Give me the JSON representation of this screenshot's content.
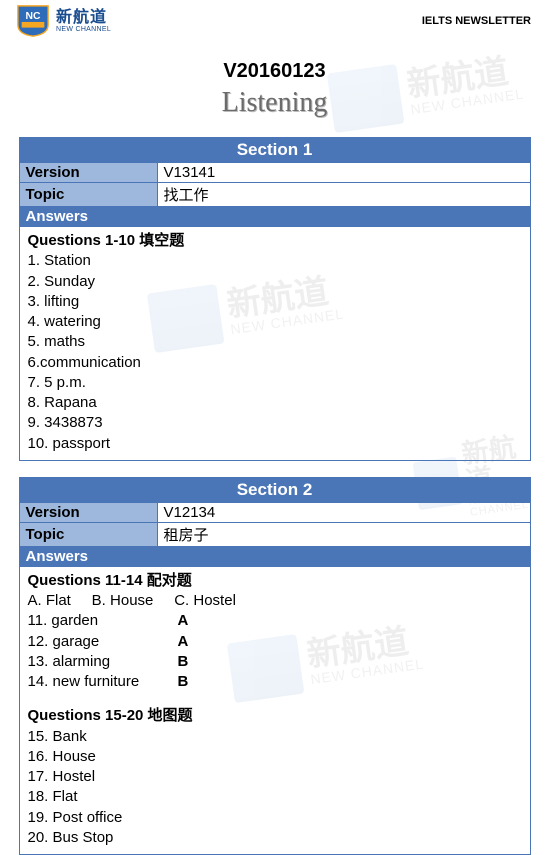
{
  "header": {
    "logo_cn": "新航道",
    "logo_en": "NEW CHANNEL",
    "newsletter": "IELTS NEWSLETTER"
  },
  "title": {
    "code": "V20160123",
    "heading": "Listening"
  },
  "watermark": {
    "cn": "新航道",
    "en": "NEW CHANNEL"
  },
  "section1": {
    "header": "Section 1",
    "version_label": "Version",
    "version_value": "V13141",
    "topic_label": "Topic",
    "topic_value": "找工作",
    "answers_label": "Answers",
    "q_heading": "Questions 1-10  填空题",
    "items": [
      "1. Station",
      "2. Sunday",
      "3. lifting",
      "4. watering",
      "5. maths",
      "6.communication",
      "7. 5 p.m.",
      "8. Rapana",
      "9. 3438873",
      "10. passport"
    ]
  },
  "section2": {
    "header": "Section 2",
    "version_label": "Version",
    "version_value": "V12134",
    "topic_label": "Topic",
    "topic_value": "租房子",
    "answers_label": "Answers",
    "q1_heading": "Questions 11-14  配对题",
    "options_line": "A. Flat     B. House     C. Hostel",
    "pairs": [
      {
        "label": "11. garden",
        "value": "A"
      },
      {
        "label": "12. garage",
        "value": "A"
      },
      {
        "label": "13. alarming",
        "value": "B"
      },
      {
        "label": "14. new furniture",
        "value": "B"
      }
    ],
    "q2_heading": "Questions 15-20  地图题",
    "list2": [
      "15. Bank",
      "16. House",
      "17. Hostel",
      "18. Flat",
      "19. Post office",
      "20. Bus Stop"
    ]
  },
  "colors": {
    "header_bg": "#4a76b8",
    "label_bg": "#9db8dc",
    "border": "#4a76b8",
    "logo_blue": "#1a4d8f"
  }
}
